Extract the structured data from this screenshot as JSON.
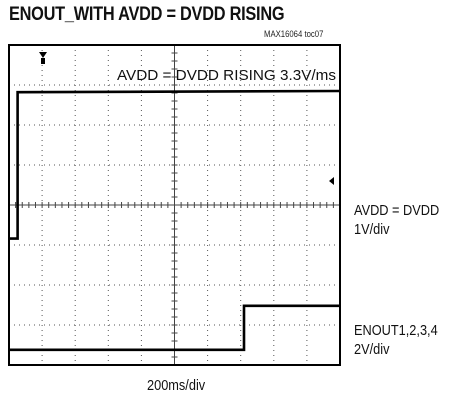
{
  "chart_data": {
    "type": "line",
    "title": "ENOUT_WITH AVDD = DVDD RISING",
    "part_number": "MAX16064 toc07",
    "annotation": "AVDD = DVDD RISING 3.3V/ms",
    "x_scale": "200ms/div",
    "grid": true,
    "x_divisions": 10,
    "y_divisions": 8,
    "series": [
      {
        "name": "AVDD = DVDD",
        "scale": "1V/div",
        "color": "#000000",
        "points_div": [
          [
            0,
            4.84
          ],
          [
            0.26,
            4.84
          ],
          [
            0.26,
            1.18
          ],
          [
            10,
            1.15
          ]
        ]
      },
      {
        "name": "ENOUT1,2,3,4",
        "scale": "2V/div",
        "color": "#000000",
        "points_div": [
          [
            0,
            7.62
          ],
          [
            7.1,
            7.62
          ],
          [
            7.1,
            6.52
          ],
          [
            10,
            6.52
          ]
        ]
      }
    ]
  }
}
